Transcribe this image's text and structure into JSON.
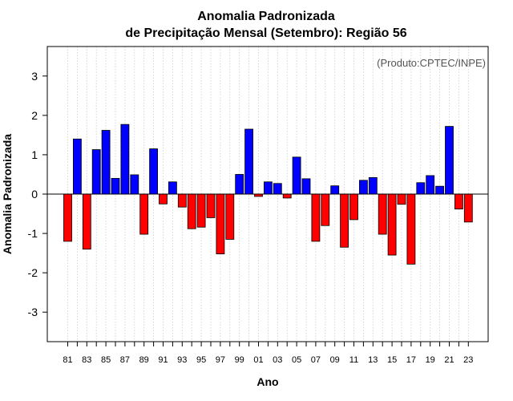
{
  "chart_data": {
    "type": "bar",
    "title": "Anomalia Padronizada",
    "subtitle": "de Precipitação Mensal (Setembro): Região 56",
    "xlabel": "Ano",
    "ylabel": "Anomalia Padronizada",
    "credit": "(Produto:CPTEC/INPE)",
    "ylim": [
      -3.75,
      3.75
    ],
    "yticks": [
      -3,
      -2,
      -1,
      0,
      1,
      2,
      3
    ],
    "xtick_labels": [
      "81",
      "83",
      "85",
      "87",
      "89",
      "91",
      "93",
      "95",
      "97",
      "99",
      "01",
      "03",
      "05",
      "07",
      "09",
      "11",
      "13",
      "15",
      "17",
      "19",
      "21",
      "23"
    ],
    "grid": "vertical dotted",
    "categories": [
      "1981",
      "1982",
      "1983",
      "1984",
      "1985",
      "1986",
      "1987",
      "1988",
      "1989",
      "1990",
      "1991",
      "1992",
      "1993",
      "1994",
      "1995",
      "1996",
      "1997",
      "1998",
      "1999",
      "2000",
      "2001",
      "2002",
      "2003",
      "2004",
      "2005",
      "2006",
      "2007",
      "2008",
      "2009",
      "2010",
      "2011",
      "2012",
      "2013",
      "2014",
      "2015",
      "2016",
      "2017",
      "2018",
      "2019",
      "2020",
      "2021",
      "2022",
      "2023"
    ],
    "values": [
      -1.2,
      1.4,
      -1.4,
      1.13,
      1.62,
      0.4,
      1.77,
      0.49,
      -1.02,
      1.15,
      -0.25,
      0.31,
      -0.33,
      -0.88,
      -0.84,
      -0.6,
      -1.52,
      -1.15,
      0.5,
      1.65,
      -0.06,
      0.31,
      0.27,
      -0.1,
      0.94,
      0.39,
      -1.2,
      -0.8,
      0.21,
      -1.35,
      -0.65,
      0.35,
      0.42,
      -1.02,
      -1.55,
      -0.26,
      -1.78,
      0.29,
      0.47,
      0.2,
      1.72,
      -0.38,
      -0.71
    ],
    "colors": {
      "positive": "#0000ff",
      "negative": "#ff0000",
      "zero_line": "#000000",
      "grid": "#cccccc"
    }
  }
}
